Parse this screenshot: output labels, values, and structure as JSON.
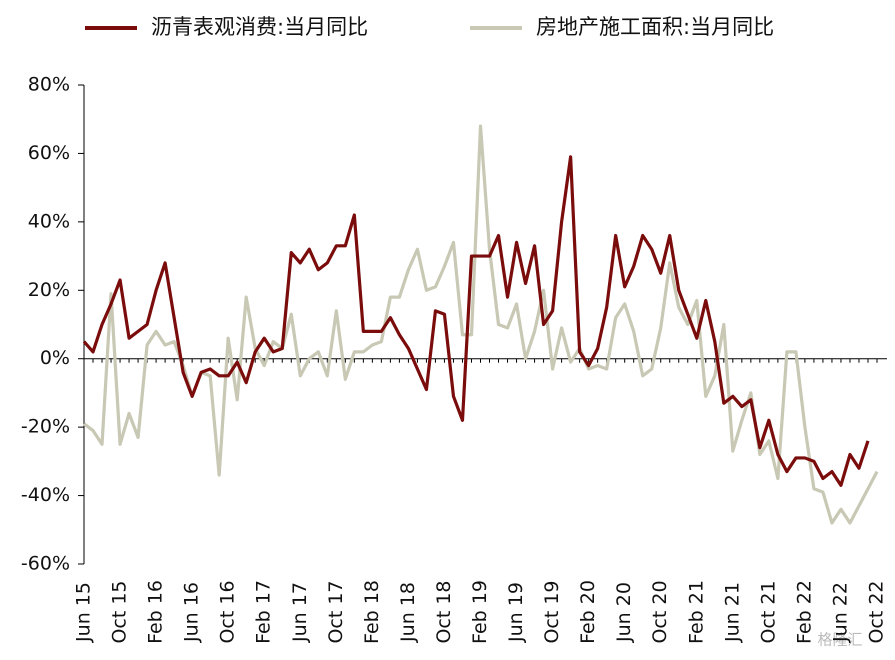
{
  "chart_data": {
    "type": "line",
    "categories": [
      "Jun 15",
      null,
      null,
      null,
      "Oct 15",
      null,
      null,
      null,
      "Feb 16",
      null,
      null,
      null,
      "Jun 16",
      null,
      null,
      null,
      "Oct 16",
      null,
      null,
      null,
      "Feb 17",
      null,
      null,
      null,
      "Jun 17",
      null,
      null,
      null,
      "Oct 17",
      null,
      null,
      null,
      "Feb 18",
      null,
      null,
      null,
      "Jun 18",
      null,
      null,
      null,
      "Oct 18",
      null,
      null,
      null,
      "Feb 19",
      null,
      null,
      null,
      "Jun 19",
      null,
      null,
      null,
      "Oct 19",
      null,
      null,
      null,
      "Feb 20",
      null,
      null,
      null,
      "Jun 20",
      null,
      null,
      null,
      "Oct 20",
      null,
      null,
      null,
      "Feb 21",
      null,
      null,
      null,
      "Jun 21",
      null,
      null,
      null,
      "Oct 21",
      null,
      null,
      null,
      "Feb 22",
      null,
      null,
      null,
      "Jun 22",
      null,
      null,
      null,
      "Oct 22"
    ],
    "series": [
      {
        "name": "沥青表观消费:当月同比",
        "color": "#7b0c0c",
        "values": [
          5,
          2,
          10,
          16,
          23,
          6,
          8,
          10,
          20,
          28,
          12,
          -4,
          -11,
          -4,
          -3,
          -5,
          -5,
          -1,
          -7,
          2,
          6,
          2,
          3,
          31,
          28,
          32,
          26,
          28,
          33,
          33,
          42,
          8,
          8,
          8,
          12,
          7,
          3,
          -3,
          -9,
          14,
          13,
          -11,
          -18,
          30,
          30,
          30,
          36,
          18,
          34,
          22,
          33,
          10,
          14,
          40,
          59,
          2,
          -2,
          3,
          15,
          36,
          21,
          27,
          36,
          32,
          25,
          36,
          20,
          13,
          6,
          17,
          5,
          -13,
          -11,
          -14,
          -12,
          -26,
          -18,
          -28,
          -33,
          -29,
          -29,
          -30,
          -35,
          -33,
          -37,
          -28,
          -32,
          -24,
          null
        ]
      },
      {
        "name": "房地产施工面积:当月同比",
        "color": "#c8c8b4",
        "values": [
          -19,
          -21,
          -25,
          19,
          -25,
          -16,
          -23,
          4,
          8,
          4,
          5,
          -2,
          -11,
          -4,
          -5,
          -34,
          6,
          -12,
          18,
          3,
          -2,
          5,
          3,
          13,
          -5,
          0,
          2,
          -5,
          14,
          -6,
          2,
          2,
          4,
          5,
          18,
          18,
          26,
          32,
          20,
          21,
          27,
          34,
          7,
          7,
          68,
          32,
          10,
          9,
          16,
          0,
          8,
          20,
          -3,
          9,
          -1,
          3,
          -3,
          -2,
          -3,
          12,
          16,
          8,
          -5,
          -3,
          9,
          28,
          15,
          10,
          17,
          -11,
          -5,
          10,
          -27,
          -18,
          -10,
          -28,
          -24,
          -35,
          2,
          2,
          -20,
          -38,
          -39,
          -48,
          -44,
          -48,
          -43,
          -38,
          -33
        ]
      }
    ],
    "ylim": [
      -60,
      80
    ],
    "yticks": [
      {
        "value": -60,
        "label": "-60%"
      },
      {
        "value": -40,
        "label": "-40%"
      },
      {
        "value": -20,
        "label": "-20%"
      },
      {
        "value": 0,
        "label": "0%"
      },
      {
        "value": 20,
        "label": "20%"
      },
      {
        "value": 40,
        "label": "40%"
      },
      {
        "value": 60,
        "label": "60%"
      },
      {
        "value": 80,
        "label": "80%"
      }
    ],
    "legend": "top",
    "watermark": "格隆汇"
  }
}
